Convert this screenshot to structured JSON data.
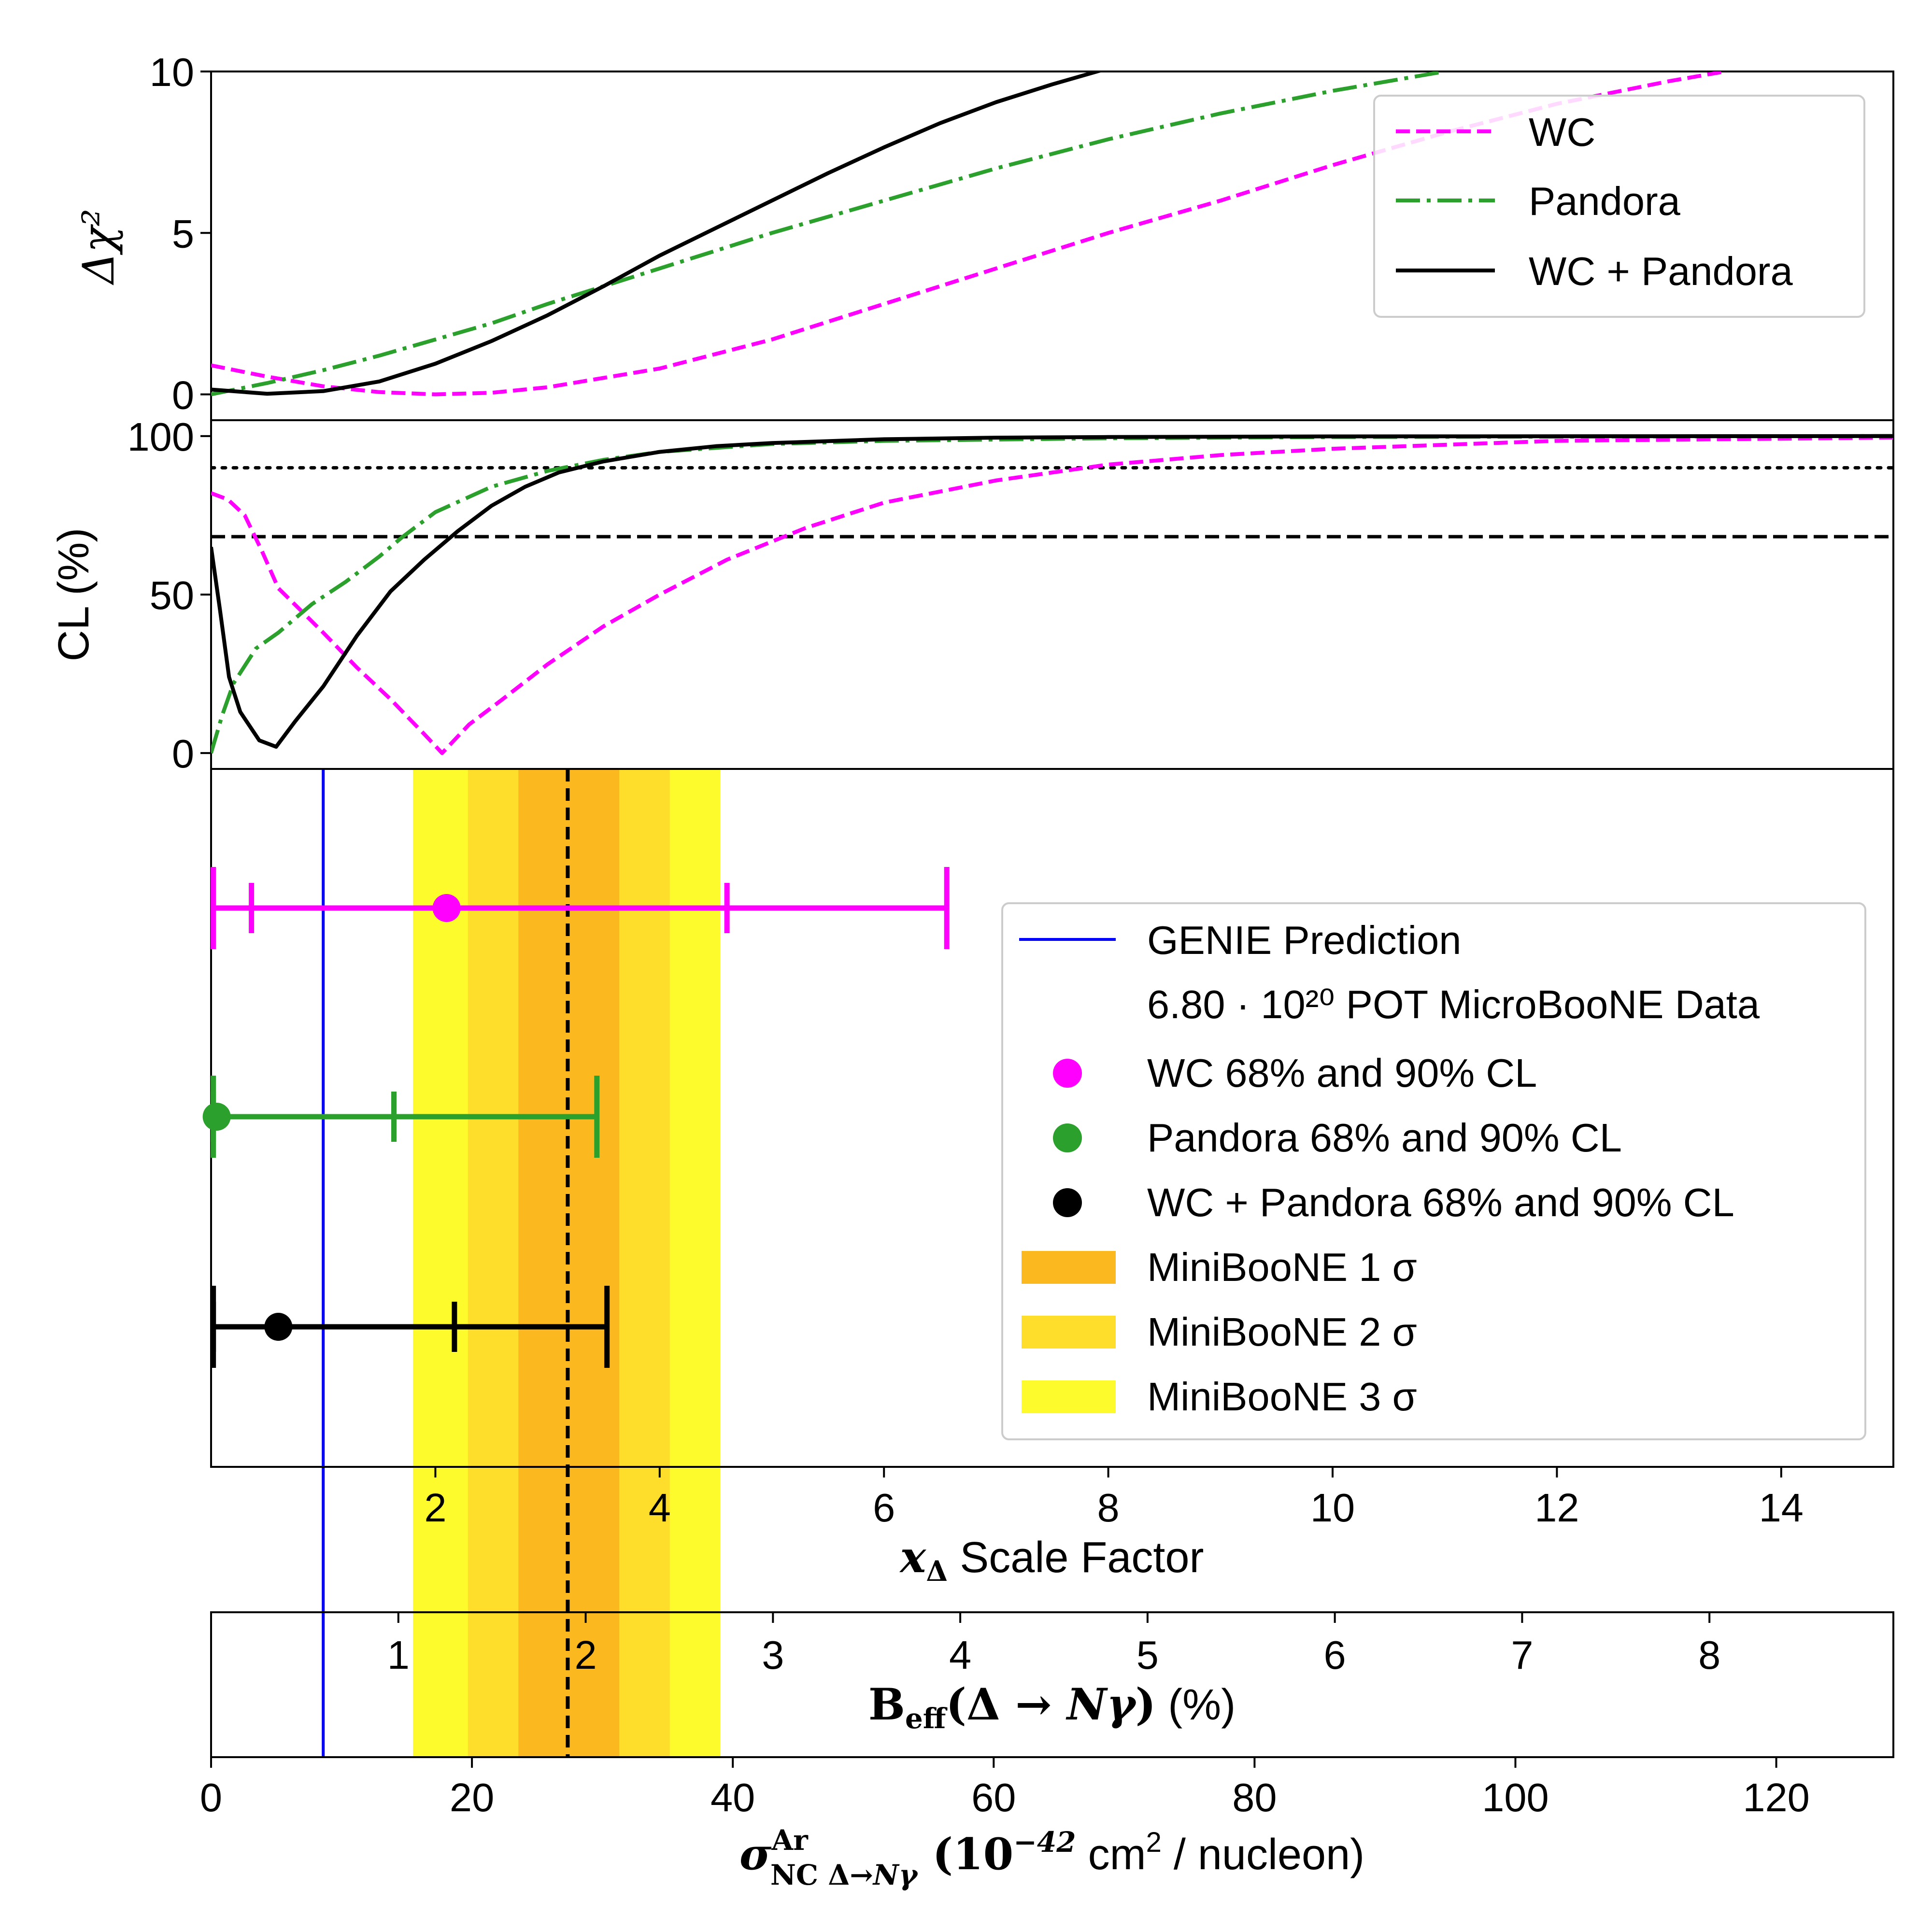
{
  "chart_data": [
    {
      "type": "line",
      "panel": "delta-chi2",
      "ylabel": "Δχ²",
      "xlim": [
        0,
        15
      ],
      "ylim": [
        -0.8,
        10
      ],
      "yticks": [
        0,
        5,
        10
      ],
      "yticklabels": [
        "0",
        "5",
        "10"
      ],
      "legend_position": "top-right",
      "series": [
        {
          "name": "WC",
          "style": "dashed",
          "color": "#ff00ff",
          "x": [
            0,
            0.5,
            1,
            1.5,
            2,
            2.5,
            3,
            4,
            5,
            6,
            7,
            8,
            9,
            10,
            11,
            12,
            13,
            13.5
          ],
          "y": [
            0.9,
            0.55,
            0.25,
            0.07,
            0.0,
            0.05,
            0.22,
            0.8,
            1.7,
            2.8,
            3.9,
            5.0,
            6.0,
            7.1,
            8.1,
            9.0,
            9.7,
            10.0
          ]
        },
        {
          "name": "Pandora",
          "style": "dashdot",
          "color": "#2ca02c",
          "x": [
            0,
            0.5,
            1,
            1.5,
            2,
            2.5,
            3,
            4,
            5,
            6,
            7,
            8,
            9,
            10,
            11,
            11
          ],
          "y": [
            0.0,
            0.35,
            0.75,
            1.2,
            1.7,
            2.2,
            2.8,
            3.9,
            5.0,
            6.0,
            7.0,
            7.9,
            8.7,
            9.4,
            10.0,
            10.0
          ]
        },
        {
          "name": "WC + Pandora",
          "style": "solid",
          "color": "#000000",
          "x": [
            0,
            0.5,
            1,
            1.5,
            2,
            2.5,
            3,
            3.5,
            4,
            4.5,
            5,
            5.5,
            6,
            6.5,
            7,
            7.5,
            8,
            8.5
          ],
          "y": [
            0.15,
            0.02,
            0.1,
            0.4,
            0.95,
            1.65,
            2.45,
            3.35,
            4.3,
            5.15,
            6.0,
            6.85,
            7.65,
            8.4,
            9.05,
            9.6,
            10.1,
            10.2
          ]
        }
      ]
    },
    {
      "type": "line",
      "panel": "confidence-level",
      "ylabel": "CL (%)",
      "xlim": [
        0,
        15
      ],
      "ylim": [
        -5,
        105
      ],
      "yticks": [
        0,
        50,
        100
      ],
      "yticklabels": [
        "0",
        "50",
        "100"
      ],
      "reference_lines": [
        {
          "y": 68.27,
          "style": "dashed",
          "color": "#000000"
        },
        {
          "y": 90,
          "style": "dotted",
          "color": "#000000"
        }
      ],
      "series": [
        {
          "name": "WC",
          "style": "dashed",
          "color": "#ff00ff",
          "x": [
            0,
            0.15,
            0.3,
            0.45,
            0.6,
            0.8,
            1.0,
            1.3,
            1.6,
            1.9,
            2.06,
            2.3,
            2.6,
            3.0,
            3.5,
            4.0,
            4.6,
            5.3,
            6.0,
            7.0,
            8.0,
            9.0,
            10.0,
            12.0,
            15.0
          ],
          "y": [
            82,
            80,
            75,
            64,
            52,
            45,
            38,
            27,
            17,
            6,
            0,
            9,
            17,
            28,
            40,
            50,
            61,
            71,
            79,
            86,
            91,
            94,
            96,
            98.5,
            99.5
          ]
        },
        {
          "name": "Pandora",
          "style": "dashdot",
          "color": "#2ca02c",
          "x": [
            0,
            0.1,
            0.2,
            0.4,
            0.6,
            0.9,
            1.2,
            1.5,
            1.7,
            2.0,
            2.5,
            3.0,
            3.5,
            4.0,
            5.0,
            6.0,
            8.0,
            10.0,
            15.0
          ],
          "y": [
            0,
            12,
            22,
            33,
            38,
            47,
            54,
            62,
            68,
            76,
            84,
            89,
            92.5,
            95,
            97.5,
            98.5,
            99.3,
            99.7,
            100
          ]
        },
        {
          "name": "WC + Pandora",
          "style": "solid",
          "color": "#000000",
          "x": [
            0,
            0.08,
            0.16,
            0.26,
            0.43,
            0.58,
            0.75,
            1.0,
            1.3,
            1.6,
            1.9,
            2.2,
            2.5,
            2.8,
            3.1,
            3.5,
            4.0,
            4.5,
            5.0,
            6.0,
            7.0,
            8.0,
            10.0,
            15.0
          ],
          "y": [
            65,
            45,
            24,
            13,
            4,
            2,
            10,
            21,
            37,
            51,
            61,
            70,
            78,
            84,
            88.5,
            92,
            95,
            96.8,
            97.8,
            99,
            99.5,
            99.7,
            99.9,
            100
          ]
        }
      ]
    },
    {
      "type": "errorbar",
      "panel": "cross-section-limits",
      "xlabel": "x_Δ Scale Factor",
      "xlim": [
        0,
        15
      ],
      "xticks": [
        2,
        4,
        6,
        8,
        10,
        12,
        14
      ],
      "xticklabels": [
        "2",
        "4",
        "6",
        "8",
        "10",
        "12",
        "14"
      ],
      "secondary_axes": [
        {
          "label": "B_eff(Δ → Nγ) (%)",
          "ticks": [
            1,
            2,
            3,
            4,
            5,
            6,
            7,
            8
          ],
          "ticklabels": [
            "1",
            "2",
            "3",
            "4",
            "5",
            "6",
            "7",
            "8"
          ],
          "scale_factor_per_unit": 1.67
        },
        {
          "label": "σ^Ar_NC Δ→Nγ (10^-42 cm² / nucleon)",
          "ticks": [
            0,
            20,
            40,
            60,
            80,
            100,
            120
          ],
          "ticklabels": [
            "0",
            "20",
            "40",
            "60",
            "80",
            "100",
            "120"
          ],
          "scale_factor_per_unit": 0.1163
        }
      ],
      "genie_prediction": 1.0,
      "miniboone_center": 3.18,
      "miniboone_bands": [
        {
          "name": "MiniBooNE 1 σ",
          "range": [
            2.74,
            3.64
          ],
          "color": "#fbb91f"
        },
        {
          "name": "MiniBooNE 2 σ",
          "range": [
            2.29,
            4.09
          ],
          "color": "#fede2a"
        },
        {
          "name": "MiniBooNE 3 σ",
          "range": [
            1.8,
            4.54
          ],
          "color": "#fefb2c"
        }
      ],
      "points": [
        {
          "name": "WC 68% and 90% CL",
          "color": "#ff00ff",
          "best_fit": 2.1,
          "cl68": [
            0.36,
            4.6
          ],
          "cl90": [
            0.02,
            6.56
          ]
        },
        {
          "name": "Pandora 68% and 90% CL",
          "color": "#2ca02c",
          "best_fit": 0.05,
          "cl68": [
            0.02,
            1.63
          ],
          "cl90": [
            0.02,
            3.44
          ]
        },
        {
          "name": "WC + Pandora 68% and 90% CL",
          "color": "#000000",
          "best_fit": 0.6,
          "cl68": [
            0.02,
            2.17
          ],
          "cl90": [
            0.02,
            3.53
          ]
        }
      ],
      "legend_position": "right",
      "legend_entries": {
        "genie": "GENIE Prediction",
        "data_header": "6.80 · 10²⁰ POT MicroBooNE Data"
      }
    }
  ]
}
